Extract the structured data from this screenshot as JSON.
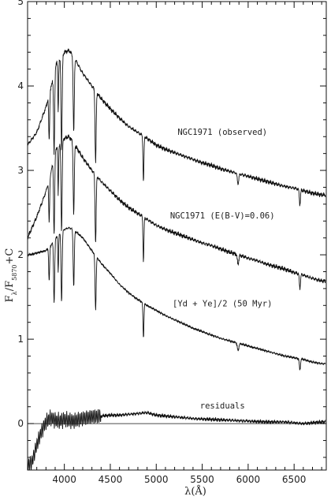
{
  "chart_data": {
    "type": "line",
    "xlabel": "λ(Å)",
    "ylabel": {
      "main": "F",
      "sub1": "λ",
      "mid": "/F",
      "sub2": "5870",
      "tail": "+C"
    },
    "xlim": [
      3600,
      6850
    ],
    "ylim": [
      -0.55,
      5.0
    ],
    "x_ticks": [
      4000,
      4500,
      5000,
      5500,
      6000,
      6500
    ],
    "x_tick_labels": [
      "4000",
      "4500",
      "5000",
      "5500",
      "6000",
      "6500"
    ],
    "y_ticks": [
      0,
      1,
      2,
      3,
      4,
      5
    ],
    "y_tick_labels": [
      "0",
      "1",
      "2",
      "3",
      "4",
      "5"
    ],
    "zero_line": 0,
    "grid": false,
    "legend": "none",
    "annotations": [
      {
        "text": "NGC1971 (observed)",
        "x": 5720,
        "y": 3.42
      },
      {
        "text": "NGC1971 (E(B-V)=0.06)",
        "x": 5720,
        "y": 2.43
      },
      {
        "text": "[Yd + Ye]/2 (50 Myr)",
        "x": 5720,
        "y": 1.39
      },
      {
        "text": "residuals",
        "x": 5720,
        "y": 0.18
      }
    ],
    "series": [
      {
        "x": [
          3600,
          3700,
          3800,
          3860,
          3900,
          3950,
          4000,
          4050,
          4100,
          4200,
          4300,
          4400,
          4500,
          4600,
          4700,
          4800,
          4900,
          5000,
          5100,
          5200,
          5300,
          5400,
          5500,
          5600,
          5700,
          5800,
          5900,
          6000,
          6100,
          6200,
          6300,
          6400,
          6500,
          6600,
          6700,
          6800
        ],
        "y": [
          3.3,
          3.45,
          3.75,
          4.0,
          4.25,
          4.3,
          4.4,
          4.42,
          4.35,
          4.15,
          4.0,
          3.85,
          3.73,
          3.62,
          3.52,
          3.45,
          3.38,
          3.3,
          3.25,
          3.21,
          3.17,
          3.13,
          3.09,
          3.06,
          3.02,
          2.99,
          2.96,
          2.93,
          2.9,
          2.87,
          2.84,
          2.81,
          2.79,
          2.76,
          2.73,
          2.71
        ]
      },
      {
        "x": [
          3600,
          3700,
          3800,
          3860,
          3900,
          3950,
          4000,
          4050,
          4100,
          4200,
          4300,
          4400,
          4500,
          4600,
          4700,
          4800,
          4900,
          5000,
          5100,
          5200,
          5300,
          5400,
          5500,
          5600,
          5700,
          5800,
          5900,
          6000,
          6100,
          6200,
          6300,
          6400,
          6500,
          6600,
          6700,
          6800
        ],
        "y": [
          2.2,
          2.45,
          2.75,
          3.0,
          3.25,
          3.3,
          3.38,
          3.4,
          3.33,
          3.15,
          3.0,
          2.87,
          2.76,
          2.65,
          2.56,
          2.49,
          2.42,
          2.35,
          2.3,
          2.26,
          2.22,
          2.18,
          2.14,
          2.11,
          2.07,
          2.03,
          2.0,
          1.96,
          1.93,
          1.89,
          1.86,
          1.83,
          1.79,
          1.76,
          1.72,
          1.69
        ]
      },
      {
        "x": [
          3600,
          3700,
          3800,
          3860,
          3900,
          3950,
          4000,
          4050,
          4100,
          4200,
          4300,
          4400,
          4500,
          4600,
          4700,
          4800,
          4900,
          5000,
          5100,
          5200,
          5300,
          5400,
          5500,
          5600,
          5700,
          5800,
          5900,
          6000,
          6100,
          6200,
          6300,
          6400,
          6500,
          6600,
          6700,
          6800
        ],
        "y": [
          2.0,
          2.02,
          2.05,
          2.12,
          2.2,
          2.25,
          2.3,
          2.32,
          2.3,
          2.2,
          2.05,
          1.9,
          1.78,
          1.65,
          1.55,
          1.47,
          1.4,
          1.34,
          1.28,
          1.23,
          1.18,
          1.13,
          1.09,
          1.05,
          1.01,
          0.98,
          0.95,
          0.92,
          0.89,
          0.86,
          0.83,
          0.8,
          0.78,
          0.76,
          0.73,
          0.71
        ]
      },
      {
        "x": [
          3600,
          3650,
          3700,
          3750,
          3800,
          3850,
          3900,
          3950,
          4000,
          4100,
          4200,
          4300,
          4400,
          4500,
          4600,
          4700,
          4800,
          4900,
          5000,
          5200,
          5400,
          5600,
          5800,
          6000,
          6200,
          6400,
          6600,
          6800
        ],
        "y": [
          -0.5,
          -0.45,
          -0.25,
          -0.1,
          0.02,
          0.07,
          0.04,
          0.03,
          0.05,
          0.03,
          0.06,
          0.08,
          0.09,
          0.1,
          0.1,
          0.11,
          0.12,
          0.13,
          0.1,
          0.08,
          0.06,
          0.05,
          0.04,
          0.03,
          0.02,
          0.02,
          0.0,
          0.02
        ]
      }
    ]
  }
}
